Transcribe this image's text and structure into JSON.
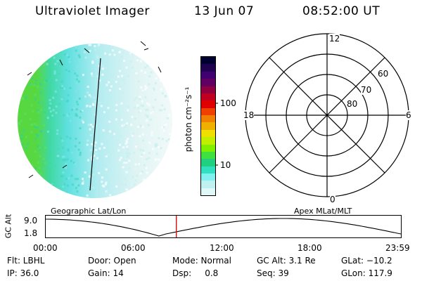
{
  "header": {
    "instrument": "Ultraviolet Imager",
    "date": "13 Jun 07",
    "time": "08:52:00 UT"
  },
  "colorbar": {
    "label": "photon cm⁻²s⁻¹",
    "ticks": [
      "100",
      "10"
    ],
    "colors": [
      "#000030",
      "#200050",
      "#400070",
      "#600060",
      "#900040",
      "#c00020",
      "#e00000",
      "#f04000",
      "#f08000",
      "#f0b000",
      "#f0e000",
      "#c0f000",
      "#80f000",
      "#40e040",
      "#20d080",
      "#30e0c0",
      "#80f0f0",
      "#c0f0f0",
      "#e0f8f8"
    ]
  },
  "polar_plot": {
    "labels": {
      "top": "12",
      "bottom": "0",
      "left": "18",
      "right": "6"
    },
    "ring_labels": [
      "60",
      "70",
      "80"
    ]
  },
  "timeline": {
    "axis_label": "GC Alt",
    "y_ticks": [
      "9.0",
      "1.8"
    ],
    "left_title": "Geographic Lat/Lon",
    "right_title": "Apex MLat/MLT",
    "x_ticks": [
      "00:00",
      "06:00",
      "12:00",
      "18:00",
      "23:59"
    ],
    "marker_time_fraction": 0.369,
    "marker_color": "#d01010"
  },
  "status": {
    "row1": {
      "flt": "Flt: LBHL",
      "door": "Door: Open",
      "mode": "Mode: Normal",
      "gc_alt": "GC Alt: 3.1 Re",
      "glat": "GLat: −10.2"
    },
    "row2": {
      "ip": "IP: 36.0",
      "gain": "Gain: 14",
      "dsp": "Dsp:     0.8",
      "seq": "Seq: 39",
      "glon": "GLon: 117.9"
    }
  }
}
